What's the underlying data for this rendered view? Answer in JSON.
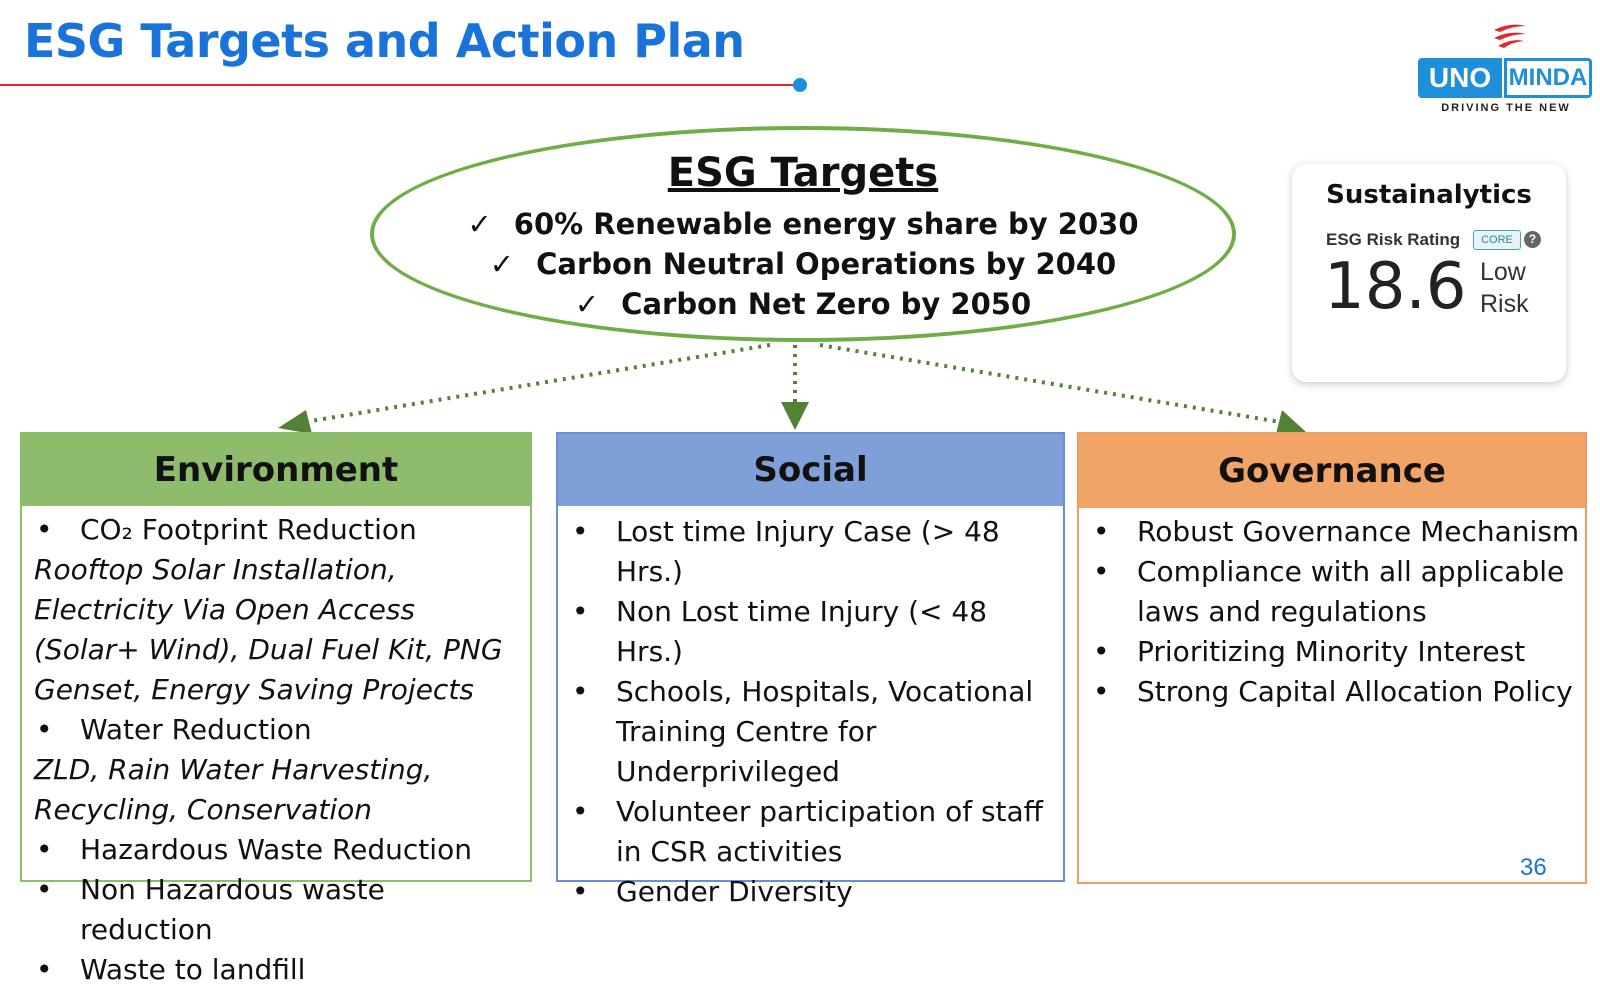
{
  "header": {
    "title": "ESG Targets and Action Plan"
  },
  "logo": {
    "uno": "UNO",
    "minda": "MINDA",
    "tagline": "DRIVING THE NEW"
  },
  "targets": {
    "title": "ESG Targets",
    "items": [
      "60% Renewable energy share by 2030",
      "Carbon Neutral Operations by 2040",
      "Carbon Net Zero by 2050"
    ]
  },
  "sustainalytics": {
    "title": "Sustainalytics",
    "label": "ESG Risk Rating",
    "badge": "CORE",
    "help": "?",
    "score": "18.6",
    "risk_line1": "Low",
    "risk_line2": "Risk"
  },
  "environment": {
    "heading": "Environment",
    "item1": "CO₂ Footprint Reduction",
    "item1_detail": "Rooftop Solar Installation, Electricity Via Open Access (Solar+ Wind), Dual Fuel Kit, PNG Genset, Energy Saving Projects",
    "item2": "Water Reduction",
    "item2_detail": "ZLD, Rain Water Harvesting, Recycling, Conservation",
    "item3": "Hazardous Waste Reduction",
    "item4": "Non Hazardous waste reduction",
    "item5": "Waste to landfill"
  },
  "social": {
    "heading": "Social",
    "items": [
      "Lost time Injury Case (> 48 Hrs.)",
      "Non Lost time Injury (< 48 Hrs.)",
      "Schools, Hospitals, Vocational Training Centre for Underprivileged",
      "Volunteer participation of staff in CSR activities",
      "Gender Diversity"
    ]
  },
  "governance": {
    "heading": "Governance",
    "items": [
      "Robust Governance Mechanism",
      "Compliance with all applicable laws and regulations",
      "Prioritizing Minority Interest",
      "Strong Capital Allocation Policy"
    ]
  },
  "page_number": "36",
  "colors": {
    "title_blue": "#1a73d9",
    "ellipse_green": "#70ad47",
    "environment": "#8fbc6c",
    "social": "#7e9fd8",
    "governance": "#f0a468"
  }
}
